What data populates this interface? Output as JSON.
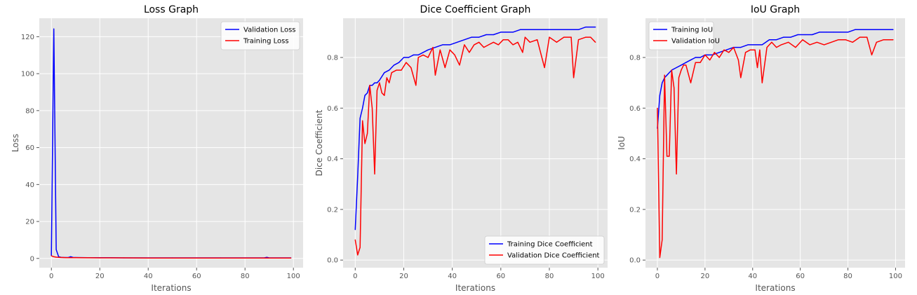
{
  "chart_data": [
    {
      "type": "line",
      "title": "Loss Graph",
      "xlabel": "Iterations",
      "ylabel": "Loss",
      "xlim": [
        -5,
        104
      ],
      "ylim": [
        -5,
        130
      ],
      "xticks": [
        0,
        20,
        40,
        60,
        80,
        100
      ],
      "yticks": [
        0,
        20,
        40,
        60,
        80,
        100,
        120
      ],
      "ytick_decimals": 0,
      "grid": true,
      "legend": "top-right",
      "series": [
        {
          "name": "Validation Loss",
          "color": "#0000ff",
          "x": [
            0,
            1,
            2,
            3,
            4,
            5,
            6,
            7,
            8,
            9,
            10,
            15,
            20,
            25,
            30,
            40,
            50,
            60,
            70,
            80,
            88,
            89,
            90,
            99
          ],
          "y": [
            1.6,
            124.2,
            4.8,
            0.9,
            0.6,
            0.5,
            0.5,
            0.5,
            0.9,
            0.5,
            0.5,
            0.4,
            0.4,
            0.4,
            0.3,
            0.3,
            0.3,
            0.3,
            0.3,
            0.3,
            0.3,
            0.6,
            0.3,
            0.3
          ]
        },
        {
          "name": "Training Loss",
          "color": "#ff0000",
          "x": [
            0,
            1,
            2,
            3,
            4,
            5,
            6,
            8,
            10,
            15,
            20,
            25,
            30,
            40,
            50,
            60,
            70,
            80,
            90,
            99
          ],
          "y": [
            1.4,
            0.9,
            0.7,
            0.6,
            0.5,
            0.5,
            0.4,
            0.4,
            0.4,
            0.35,
            0.3,
            0.3,
            0.3,
            0.25,
            0.25,
            0.2,
            0.2,
            0.2,
            0.2,
            0.2
          ]
        }
      ]
    },
    {
      "type": "line",
      "title": "Dice Coefficient Graph",
      "xlabel": "Iterations",
      "ylabel": "Dice Coefficient",
      "xlim": [
        -5,
        104
      ],
      "ylim": [
        -0.03,
        0.955
      ],
      "xticks": [
        0,
        20,
        40,
        60,
        80,
        100
      ],
      "yticks": [
        0.0,
        0.2,
        0.4,
        0.6,
        0.8
      ],
      "ytick_decimals": 1,
      "grid": true,
      "legend": "bottom-right",
      "series": [
        {
          "name": "Training Dice Coefficient",
          "color": "#0000ff",
          "x": [
            0,
            1,
            2,
            3,
            4,
            5,
            6,
            7,
            8,
            9,
            10,
            12,
            14,
            16,
            18,
            20,
            22,
            24,
            26,
            28,
            30,
            33,
            36,
            39,
            42,
            45,
            48,
            51,
            54,
            57,
            60,
            62,
            65,
            68,
            71,
            74,
            77,
            80,
            83,
            86,
            89,
            92,
            95,
            99
          ],
          "y": [
            0.12,
            0.33,
            0.56,
            0.6,
            0.65,
            0.66,
            0.69,
            0.69,
            0.7,
            0.7,
            0.71,
            0.74,
            0.75,
            0.77,
            0.78,
            0.8,
            0.8,
            0.81,
            0.81,
            0.82,
            0.83,
            0.84,
            0.85,
            0.85,
            0.86,
            0.87,
            0.88,
            0.88,
            0.89,
            0.89,
            0.9,
            0.9,
            0.9,
            0.91,
            0.91,
            0.91,
            0.91,
            0.91,
            0.91,
            0.91,
            0.91,
            0.91,
            0.92,
            0.92
          ]
        },
        {
          "name": "Validation Dice Coefficient",
          "color": "#ff0000",
          "x": [
            0,
            1,
            2,
            3,
            4,
            5,
            6,
            7,
            8,
            9,
            10,
            11,
            12,
            13,
            14,
            15,
            17,
            19,
            21,
            23,
            25,
            26,
            28,
            30,
            32,
            33,
            35,
            37,
            39,
            41,
            43,
            45,
            47,
            49,
            51,
            53,
            55,
            57,
            59,
            61,
            63,
            65,
            67,
            69,
            70,
            72,
            75,
            78,
            80,
            83,
            86,
            89,
            90,
            92,
            95,
            97,
            99
          ],
          "y": [
            0.08,
            0.02,
            0.05,
            0.55,
            0.46,
            0.5,
            0.69,
            0.6,
            0.34,
            0.67,
            0.7,
            0.66,
            0.65,
            0.72,
            0.7,
            0.74,
            0.75,
            0.75,
            0.78,
            0.76,
            0.69,
            0.8,
            0.81,
            0.8,
            0.84,
            0.73,
            0.83,
            0.76,
            0.83,
            0.81,
            0.77,
            0.85,
            0.82,
            0.85,
            0.86,
            0.84,
            0.85,
            0.86,
            0.85,
            0.87,
            0.87,
            0.85,
            0.86,
            0.82,
            0.88,
            0.86,
            0.87,
            0.76,
            0.88,
            0.86,
            0.88,
            0.88,
            0.72,
            0.87,
            0.88,
            0.88,
            0.86
          ]
        }
      ]
    },
    {
      "type": "line",
      "title": "IoU Graph",
      "xlabel": "Iterations",
      "ylabel": "IoU",
      "xlim": [
        -5,
        104
      ],
      "ylim": [
        -0.03,
        0.955
      ],
      "xticks": [
        0,
        20,
        40,
        60,
        80,
        100
      ],
      "yticks": [
        0.0,
        0.2,
        0.4,
        0.6,
        0.8
      ],
      "ytick_decimals": 1,
      "grid": true,
      "legend": "top-left",
      "series": [
        {
          "name": "Training IoU",
          "color": "#0000ff",
          "x": [
            0,
            1,
            2,
            3,
            4,
            5,
            6,
            8,
            10,
            12,
            14,
            16,
            18,
            20,
            23,
            26,
            29,
            32,
            35,
            38,
            41,
            44,
            47,
            50,
            53,
            56,
            59,
            62,
            65,
            68,
            71,
            74,
            77,
            80,
            83,
            86,
            89,
            92,
            95,
            99
          ],
          "y": [
            0.52,
            0.65,
            0.7,
            0.72,
            0.73,
            0.74,
            0.75,
            0.76,
            0.77,
            0.78,
            0.79,
            0.8,
            0.8,
            0.81,
            0.81,
            0.82,
            0.83,
            0.84,
            0.84,
            0.85,
            0.85,
            0.85,
            0.87,
            0.87,
            0.88,
            0.88,
            0.89,
            0.89,
            0.89,
            0.9,
            0.9,
            0.9,
            0.9,
            0.9,
            0.91,
            0.91,
            0.91,
            0.91,
            0.91,
            0.91
          ]
        },
        {
          "name": "Validation IoU",
          "color": "#ff0000",
          "x": [
            0,
            1,
            2,
            3,
            4,
            5,
            6,
            7,
            8,
            9,
            10,
            11,
            12,
            14,
            16,
            18,
            20,
            22,
            24,
            26,
            28,
            30,
            32,
            34,
            35,
            37,
            39,
            41,
            42,
            43,
            44,
            46,
            48,
            50,
            52,
            55,
            58,
            61,
            64,
            67,
            70,
            73,
            76,
            79,
            82,
            85,
            88,
            90,
            92,
            95,
            97,
            99
          ],
          "y": [
            0.6,
            0.01,
            0.08,
            0.73,
            0.41,
            0.41,
            0.75,
            0.68,
            0.34,
            0.72,
            0.75,
            0.77,
            0.77,
            0.7,
            0.78,
            0.78,
            0.81,
            0.79,
            0.82,
            0.8,
            0.83,
            0.82,
            0.84,
            0.79,
            0.72,
            0.82,
            0.83,
            0.83,
            0.76,
            0.83,
            0.7,
            0.84,
            0.86,
            0.84,
            0.85,
            0.86,
            0.84,
            0.87,
            0.85,
            0.86,
            0.85,
            0.86,
            0.87,
            0.87,
            0.86,
            0.88,
            0.88,
            0.81,
            0.86,
            0.87,
            0.87,
            0.87
          ]
        }
      ]
    }
  ]
}
